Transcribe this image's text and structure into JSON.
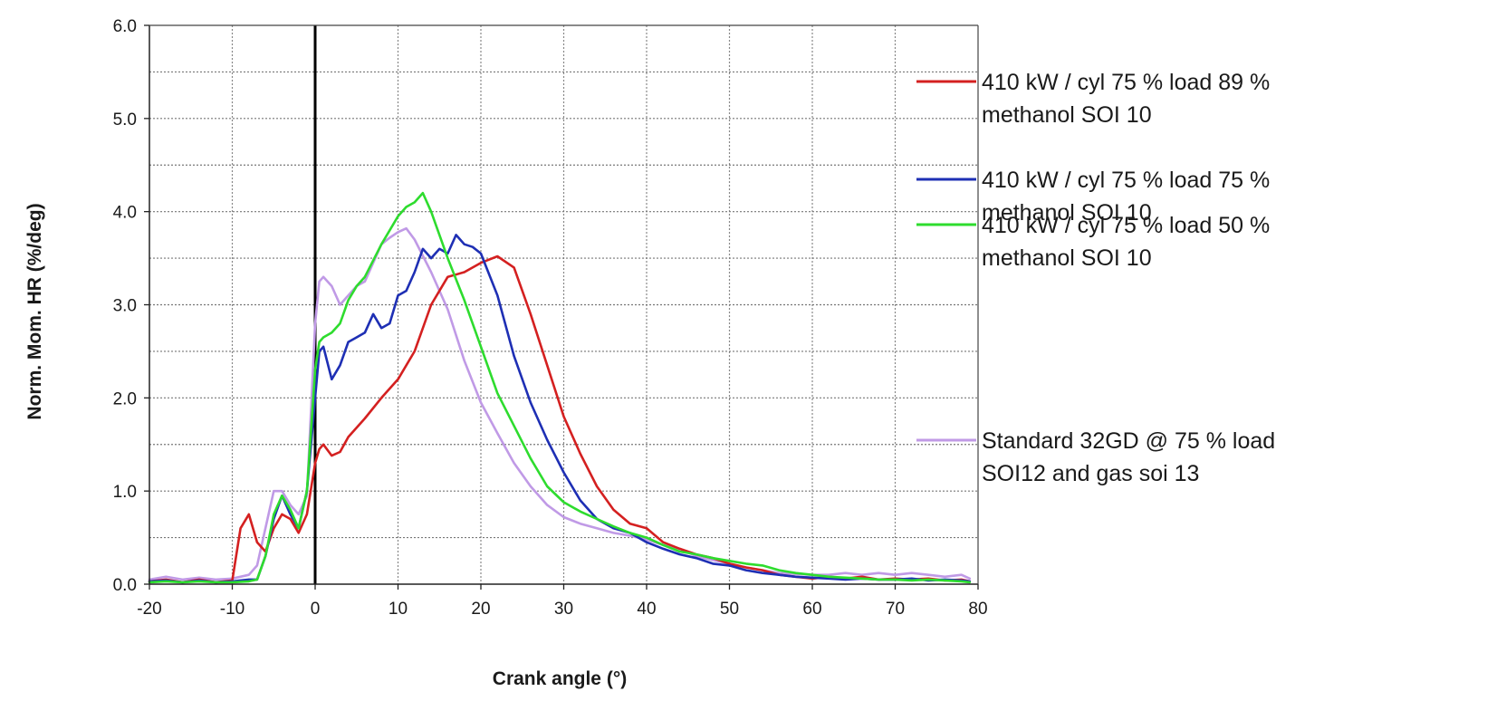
{
  "chart_data": {
    "type": "line",
    "title": "",
    "xlabel": "Crank angle (°)",
    "ylabel": "Norm. Mom. HR (%/deg)",
    "xlim": [
      -20,
      80
    ],
    "ylim": [
      0,
      6
    ],
    "x_ticks": [
      -20,
      -10,
      0,
      10,
      20,
      30,
      40,
      50,
      60,
      70,
      80
    ],
    "x_tick_labels": [
      "-20",
      "-10",
      "0",
      "10",
      "20",
      "30",
      "40",
      "50",
      "60",
      "70",
      "80"
    ],
    "y_ticks": [
      0,
      1,
      2,
      3,
      4,
      5,
      6
    ],
    "y_tick_labels": [
      "0.0",
      "1.0",
      "2.0",
      "3.0",
      "4.0",
      "5.0",
      "6.0"
    ],
    "grid": true,
    "legend_position": "right",
    "series": [
      {
        "name": "410 kW / cyl 75 % load 89 % methanol SOI 10",
        "legend_lines": [
          "410 kW / cyl 75 % load 89 %",
          "methanol SOI 10"
        ],
        "color": "#d42020",
        "x": [
          -20,
          -18,
          -16,
          -14,
          -12,
          -10,
          -9,
          -8,
          -7,
          -6,
          -5,
          -4,
          -3,
          -2,
          -1,
          0,
          0.5,
          1,
          2,
          3,
          4,
          6,
          8,
          10,
          12,
          14,
          16,
          18,
          20,
          22,
          24,
          26,
          28,
          30,
          32,
          34,
          36,
          38,
          40,
          42,
          44,
          46,
          48,
          50,
          52,
          54,
          56,
          58,
          60,
          62,
          64,
          66,
          68,
          70,
          72,
          74,
          76,
          78,
          79
        ],
        "y": [
          0.03,
          0.05,
          0.02,
          0.05,
          0.02,
          0.04,
          0.6,
          0.75,
          0.45,
          0.35,
          0.6,
          0.75,
          0.7,
          0.55,
          0.75,
          1.3,
          1.45,
          1.5,
          1.38,
          1.42,
          1.58,
          1.78,
          2.0,
          2.2,
          2.5,
          3.0,
          3.3,
          3.35,
          3.45,
          3.52,
          3.4,
          2.9,
          2.35,
          1.8,
          1.4,
          1.05,
          0.8,
          0.65,
          0.6,
          0.45,
          0.38,
          0.32,
          0.28,
          0.22,
          0.18,
          0.15,
          0.1,
          0.08,
          0.06,
          0.08,
          0.06,
          0.08,
          0.05,
          0.06,
          0.05,
          0.06,
          0.04,
          0.05,
          0.03
        ]
      },
      {
        "name": "410 kW / cyl 75 % load 75 % methanol SOI 10",
        "legend_lines": [
          "410 kW / cyl 75 % load 75 %",
          "methanol SOI 10"
        ],
        "color": "#1e2fb4",
        "x": [
          -20,
          -18,
          -16,
          -14,
          -12,
          -10,
          -8,
          -7,
          -6,
          -5,
          -4,
          -3,
          -2,
          -1,
          0,
          0.5,
          1,
          2,
          3,
          4,
          5,
          6,
          7,
          8,
          9,
          10,
          11,
          12,
          13,
          14,
          15,
          16,
          17,
          18,
          19,
          20,
          22,
          24,
          26,
          28,
          30,
          32,
          34,
          36,
          38,
          40,
          42,
          44,
          46,
          48,
          50,
          52,
          54,
          56,
          58,
          60,
          62,
          64,
          66,
          68,
          70,
          72,
          74,
          76,
          78,
          79
        ],
        "y": [
          0.03,
          0.04,
          0.02,
          0.04,
          0.02,
          0.03,
          0.05,
          0.05,
          0.3,
          0.7,
          0.95,
          0.75,
          0.6,
          1.0,
          2.0,
          2.5,
          2.55,
          2.2,
          2.35,
          2.6,
          2.65,
          2.7,
          2.9,
          2.75,
          2.8,
          3.1,
          3.15,
          3.35,
          3.6,
          3.5,
          3.6,
          3.55,
          3.75,
          3.65,
          3.62,
          3.55,
          3.1,
          2.45,
          1.95,
          1.55,
          1.2,
          0.9,
          0.7,
          0.6,
          0.55,
          0.45,
          0.38,
          0.32,
          0.28,
          0.22,
          0.2,
          0.15,
          0.12,
          0.1,
          0.08,
          0.07,
          0.06,
          0.05,
          0.06,
          0.05,
          0.05,
          0.06,
          0.04,
          0.05,
          0.04,
          0.03
        ]
      },
      {
        "name": "410 kW / cyl 75 % load 50 % methanol SOI 10",
        "legend_lines": [
          "410 kW / cyl 75 % load 50 %",
          "methanol SOI 10"
        ],
        "color": "#2edc2e",
        "x": [
          -20,
          -18,
          -16,
          -14,
          -12,
          -10,
          -8,
          -7,
          -6,
          -5,
          -4,
          -3,
          -2,
          -1,
          0,
          0.5,
          1,
          2,
          3,
          4,
          5,
          6,
          8,
          10,
          11,
          12,
          13,
          14,
          16,
          18,
          20,
          22,
          24,
          26,
          28,
          30,
          32,
          34,
          36,
          38,
          40,
          42,
          44,
          46,
          48,
          50,
          52,
          54,
          56,
          58,
          60,
          62,
          64,
          66,
          68,
          70,
          72,
          74,
          76,
          78,
          79
        ],
        "y": [
          0.02,
          0.03,
          0.02,
          0.03,
          0.02,
          0.02,
          0.03,
          0.05,
          0.3,
          0.75,
          0.95,
          0.8,
          0.6,
          1.0,
          2.3,
          2.6,
          2.65,
          2.7,
          2.8,
          3.05,
          3.2,
          3.3,
          3.65,
          3.95,
          4.05,
          4.1,
          4.2,
          4.0,
          3.5,
          3.05,
          2.55,
          2.05,
          1.7,
          1.35,
          1.05,
          0.88,
          0.78,
          0.7,
          0.62,
          0.55,
          0.5,
          0.42,
          0.35,
          0.32,
          0.28,
          0.25,
          0.22,
          0.2,
          0.15,
          0.12,
          0.1,
          0.08,
          0.07,
          0.06,
          0.05,
          0.05,
          0.04,
          0.05,
          0.04,
          0.03,
          0.02
        ]
      },
      {
        "name": "Standard 32GD @ 75 % load SOI12 and gas soi 13",
        "legend_lines": [
          "Standard 32GD @ 75 % load",
          "SOI12 and gas soi 13"
        ],
        "color": "#c09ae6",
        "x": [
          -20,
          -18,
          -16,
          -14,
          -12,
          -10,
          -8,
          -7,
          -6,
          -5,
          -4,
          -3,
          -2,
          -1,
          0,
          0.5,
          1,
          2,
          3,
          4,
          5,
          6,
          7,
          8,
          9,
          10,
          11,
          12,
          14,
          16,
          18,
          20,
          22,
          24,
          26,
          28,
          30,
          32,
          34,
          36,
          38,
          40,
          42,
          44,
          46,
          48,
          50,
          52,
          54,
          56,
          58,
          60,
          62,
          64,
          66,
          68,
          70,
          72,
          74,
          76,
          78,
          79
        ],
        "y": [
          0.05,
          0.08,
          0.05,
          0.07,
          0.05,
          0.06,
          0.1,
          0.2,
          0.6,
          1.0,
          1.0,
          0.85,
          0.75,
          0.95,
          2.8,
          3.25,
          3.3,
          3.2,
          3.0,
          3.1,
          3.2,
          3.25,
          3.45,
          3.65,
          3.72,
          3.78,
          3.82,
          3.7,
          3.35,
          2.95,
          2.4,
          1.95,
          1.62,
          1.3,
          1.05,
          0.85,
          0.72,
          0.65,
          0.6,
          0.55,
          0.52,
          0.48,
          0.42,
          0.38,
          0.3,
          0.26,
          0.22,
          0.18,
          0.15,
          0.12,
          0.11,
          0.1,
          0.1,
          0.12,
          0.1,
          0.12,
          0.1,
          0.12,
          0.1,
          0.08,
          0.1,
          0.06
        ]
      }
    ]
  }
}
